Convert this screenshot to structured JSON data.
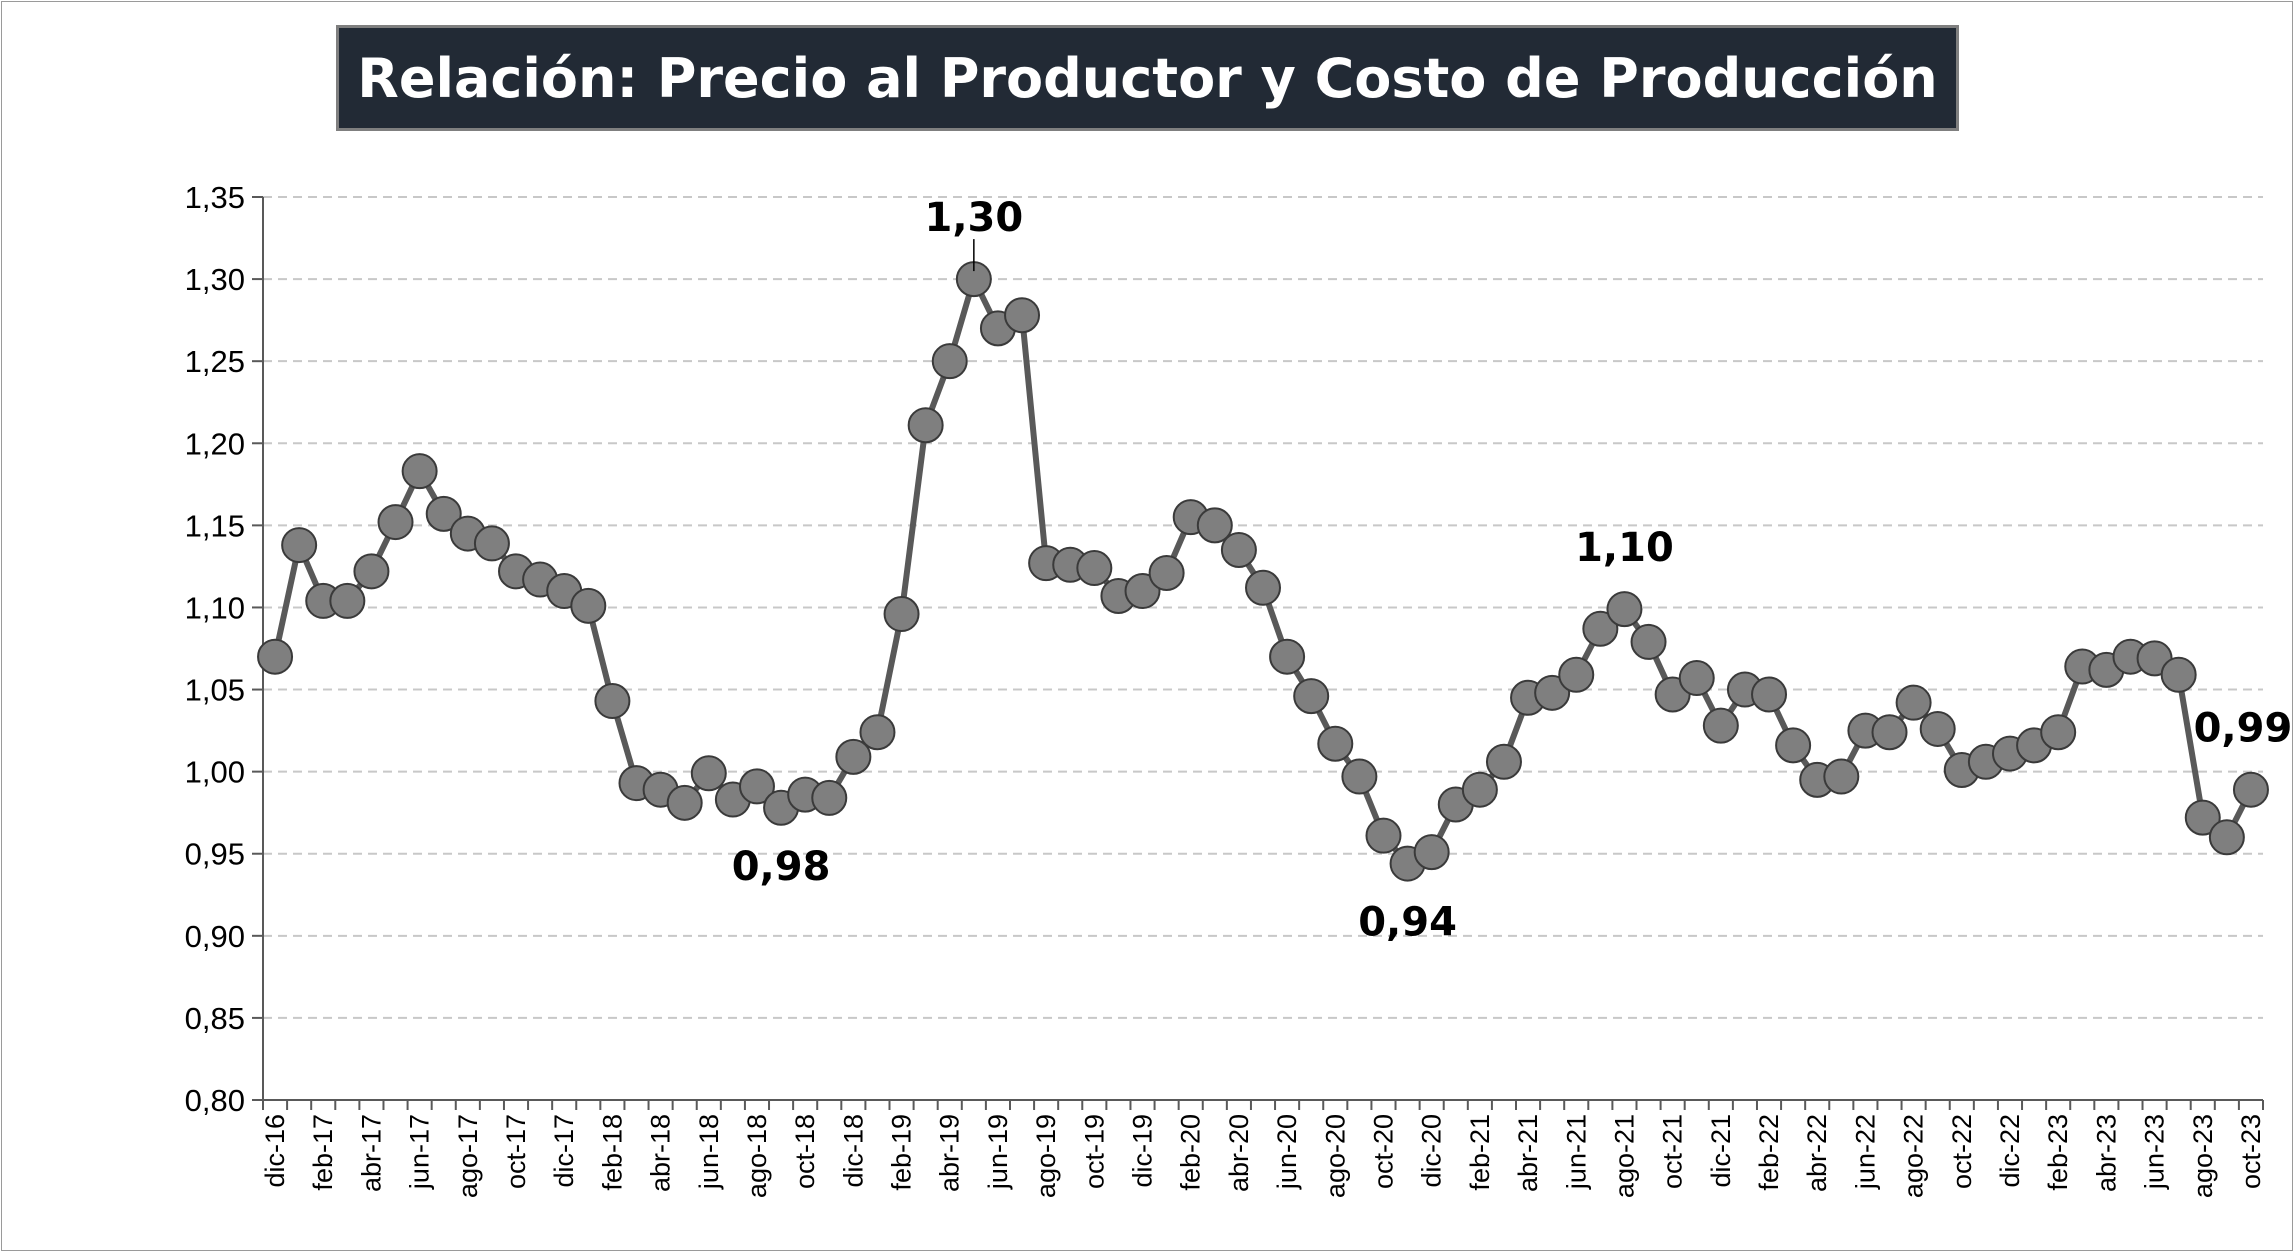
{
  "chart_data": {
    "type": "line",
    "title": "Relación: Precio al Productor y Costo de Producción",
    "xlabel": "",
    "ylabel": "",
    "ylim": [
      0.8,
      1.35
    ],
    "yticks": [
      "0,80",
      "0,85",
      "0,90",
      "0,95",
      "1,00",
      "1,05",
      "1,10",
      "1,15",
      "1,20",
      "1,25",
      "1,30",
      "1,35"
    ],
    "grid": true,
    "legend": "none",
    "line_color": "#595959",
    "marker_color": "#7f7f7f",
    "x": [
      "dic-16",
      "ene-17",
      "feb-17",
      "mar-17",
      "abr-17",
      "may-17",
      "jun-17",
      "jul-17",
      "ago-17",
      "sep-17",
      "oct-17",
      "nov-17",
      "dic-17",
      "ene-18",
      "feb-18",
      "mar-18",
      "abr-18",
      "may-18",
      "jun-18",
      "jul-18",
      "ago-18",
      "sep-18",
      "oct-18",
      "nov-18",
      "dic-18",
      "ene-19",
      "feb-19",
      "mar-19",
      "abr-19",
      "may-19",
      "jun-19",
      "jul-19",
      "ago-19",
      "sep-19",
      "oct-19",
      "nov-19",
      "dic-19",
      "ene-20",
      "feb-20",
      "mar-20",
      "abr-20",
      "may-20",
      "jun-20",
      "jul-20",
      "ago-20",
      "sep-20",
      "oct-20",
      "nov-20",
      "dic-20",
      "ene-21",
      "feb-21",
      "mar-21",
      "abr-21",
      "may-21",
      "jun-21",
      "jul-21",
      "ago-21",
      "sep-21",
      "oct-21",
      "nov-21",
      "dic-21",
      "ene-22",
      "feb-22",
      "mar-22",
      "abr-22",
      "may-22",
      "jun-22",
      "jul-22",
      "ago-22",
      "sep-22",
      "oct-22",
      "nov-22",
      "dic-22",
      "ene-23",
      "feb-23",
      "mar-23",
      "abr-23",
      "may-23",
      "jun-23",
      "jul-23",
      "ago-23",
      "sep-23",
      "oct-23"
    ],
    "xtick_labels": [
      "dic-16",
      "feb-17",
      "abr-17",
      "jun-17",
      "ago-17",
      "oct-17",
      "dic-17",
      "feb-18",
      "abr-18",
      "jun-18",
      "ago-18",
      "oct-18",
      "dic-18",
      "feb-19",
      "abr-19",
      "jun-19",
      "ago-19",
      "oct-19",
      "dic-19",
      "feb-20",
      "abr-20",
      "jun-20",
      "ago-20",
      "oct-20",
      "dic-20",
      "feb-21",
      "abr-21",
      "jun-21",
      "ago-21",
      "oct-21",
      "dic-21",
      "feb-22",
      "abr-22",
      "jun-22",
      "ago-22",
      "oct-22",
      "dic-22",
      "feb-23",
      "abr-23",
      "jun-23",
      "ago-23",
      "oct-23"
    ],
    "series": [
      {
        "values": [
          1.07,
          1.138,
          1.104,
          1.104,
          1.122,
          1.152,
          1.183,
          1.157,
          1.145,
          1.139,
          1.122,
          1.117,
          1.11,
          1.101,
          1.043,
          0.993,
          0.989,
          0.981,
          0.999,
          0.983,
          0.991,
          0.978,
          0.986,
          0.984,
          1.009,
          1.024,
          1.096,
          1.211,
          1.25,
          1.3,
          1.27,
          1.278,
          1.127,
          1.126,
          1.124,
          1.107,
          1.11,
          1.121,
          1.155,
          1.15,
          1.135,
          1.112,
          1.07,
          1.046,
          1.017,
          0.997,
          0.961,
          0.944,
          0.951,
          0.98,
          0.989,
          1.006,
          1.045,
          1.048,
          1.059,
          1.087,
          1.099,
          1.079,
          1.047,
          1.057,
          1.028,
          1.05,
          1.047,
          1.016,
          0.995,
          0.997,
          1.025,
          1.024,
          1.042,
          1.026,
          1.001,
          1.006,
          1.011,
          1.016,
          1.024,
          1.064,
          1.062,
          1.07,
          1.069,
          1.059,
          0.972,
          0.96,
          0.989
        ]
      }
    ],
    "annotations": [
      {
        "text": "1,30",
        "x": "may-19",
        "y": 1.3,
        "position": "above"
      },
      {
        "text": "0,98",
        "x": "sep-18",
        "y": 0.978,
        "position": "below"
      },
      {
        "text": "0,94",
        "x": "nov-20",
        "y": 0.944,
        "position": "below"
      },
      {
        "text": "1,10",
        "x": "ago-21",
        "y": 1.099,
        "position": "above"
      },
      {
        "text": "0,99",
        "x": "oct-23",
        "y": 0.989,
        "position": "above"
      }
    ]
  }
}
